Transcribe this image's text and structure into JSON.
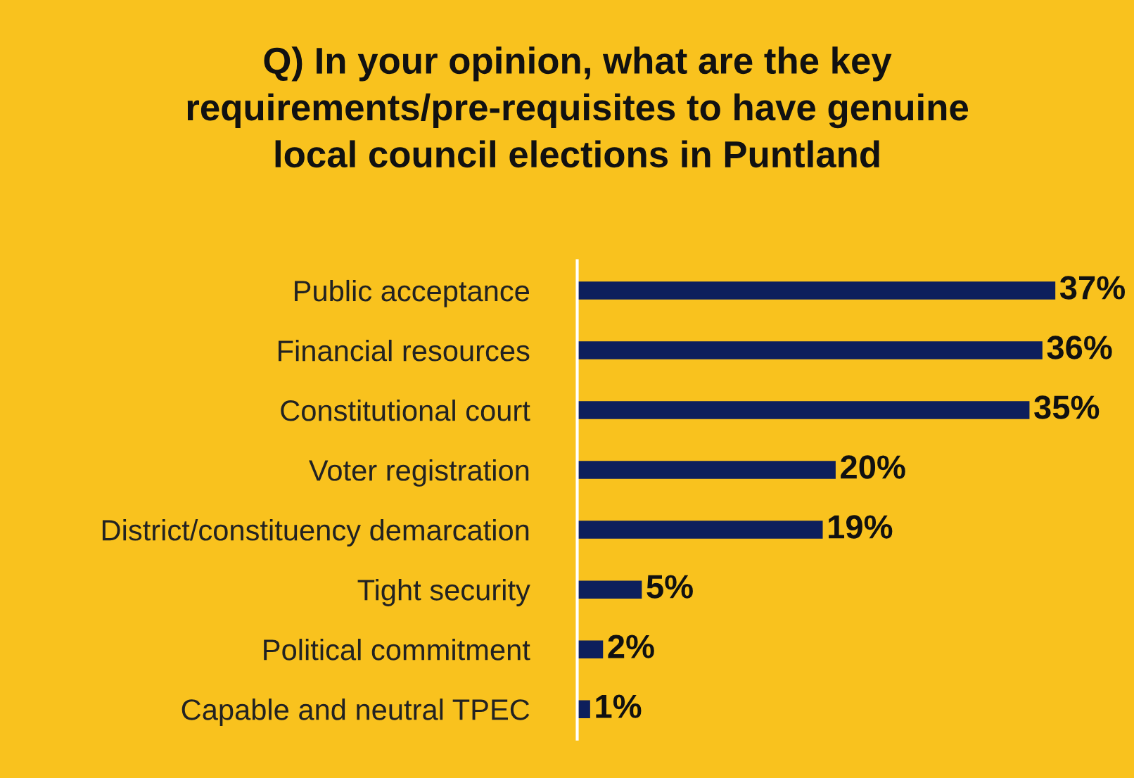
{
  "chart_data": {
    "type": "bar",
    "orientation": "horizontal",
    "title": "Q) In your opinion, what are the key\nrequirements/pre-requisites to have genuine\nlocal council elections in Puntland",
    "categories": [
      "Public acceptance",
      "Financial resources",
      "Constitutional court",
      "Voter registration",
      "District/constituency demarcation",
      "Tight security",
      "Political commitment",
      "Capable and neutral TPEC"
    ],
    "values": [
      37,
      36,
      35,
      20,
      19,
      5,
      2,
      1
    ],
    "value_labels": [
      "37%",
      "36%",
      "35%",
      "20%",
      "19%",
      "5%",
      "2%",
      "1%"
    ],
    "color": "#0d1f5c",
    "xlim": [
      0,
      43
    ],
    "tick_labels": "y",
    "grid": false,
    "legend": false
  }
}
